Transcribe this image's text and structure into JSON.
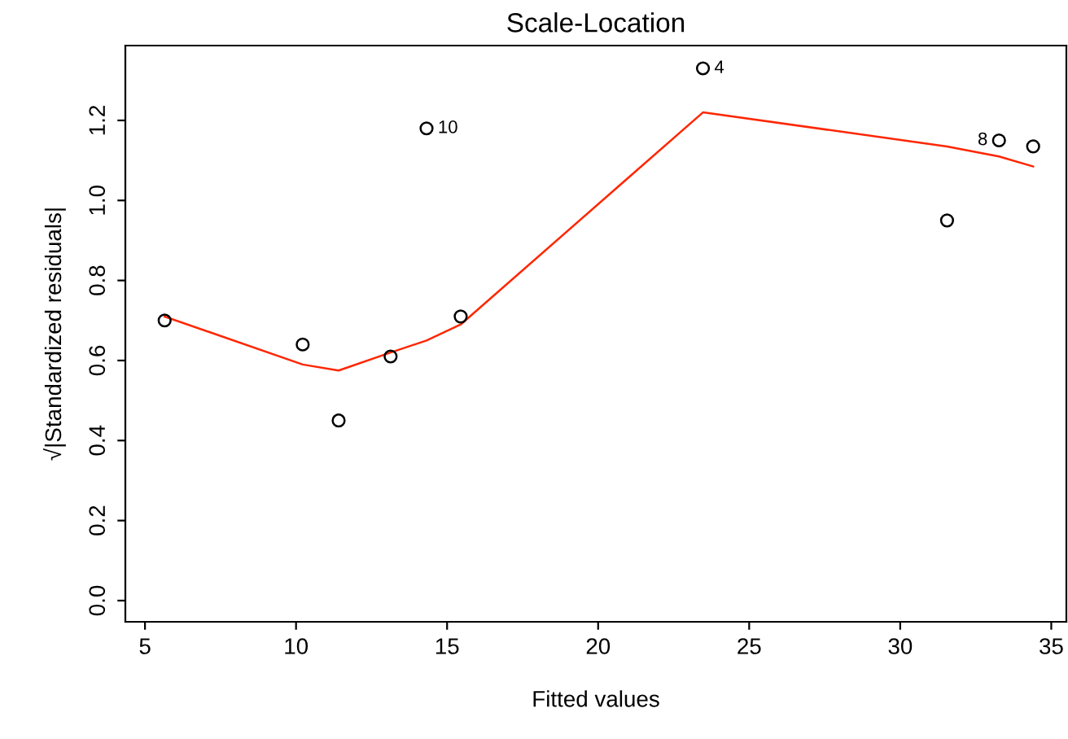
{
  "chart_data": {
    "type": "scatter",
    "title": "Scale-Location",
    "xlabel": "Fitted values",
    "ylabel": "√|Standardized residuals|",
    "series": [
      {
        "color": "#000000",
        "marker": "circle",
        "x": [
          5.65,
          10.22,
          11.41,
          13.13,
          14.32,
          15.45,
          23.47,
          31.55,
          33.27,
          34.4
        ],
        "values": [
          0.7,
          0.64,
          0.45,
          0.61,
          1.18,
          0.71,
          1.33,
          0.95,
          1.15,
          1.135
        ]
      },
      {
        "type": "line",
        "color": "#ff2600",
        "marker": "none",
        "line_style": "solid",
        "x": [
          5.65,
          10.22,
          11.41,
          13.13,
          14.32,
          15.45,
          23.47,
          31.55,
          33.27,
          34.4
        ],
        "values": [
          0.71,
          0.59,
          0.575,
          0.62,
          0.65,
          0.69,
          1.22,
          1.135,
          1.11,
          1.085
        ]
      }
    ],
    "annotations": [
      {
        "text": "10",
        "x": 14.32,
        "y": 1.18
      },
      {
        "text": "4",
        "x": 23.47,
        "y": 1.33
      },
      {
        "text": "8",
        "x": 33.27,
        "y": 1.15
      }
    ],
    "xlim": [
      4.35,
      35.5
    ],
    "ylim": [
      -0.053,
      1.387
    ],
    "xticks": [
      5,
      10,
      15,
      20,
      25,
      30,
      35
    ],
    "yticks": [
      {
        "value": 0,
        "label": "0.0"
      },
      {
        "value": 0.2,
        "label": "0.2"
      },
      {
        "value": 0.4,
        "label": "0.4"
      },
      {
        "value": 0.6,
        "label": "0.6"
      },
      {
        "value": 0.8,
        "label": "0.8"
      },
      {
        "value": 1.0,
        "label": "1.0"
      },
      {
        "value": 1.2,
        "label": "1.2"
      }
    ],
    "grid": false,
    "legend": false
  }
}
